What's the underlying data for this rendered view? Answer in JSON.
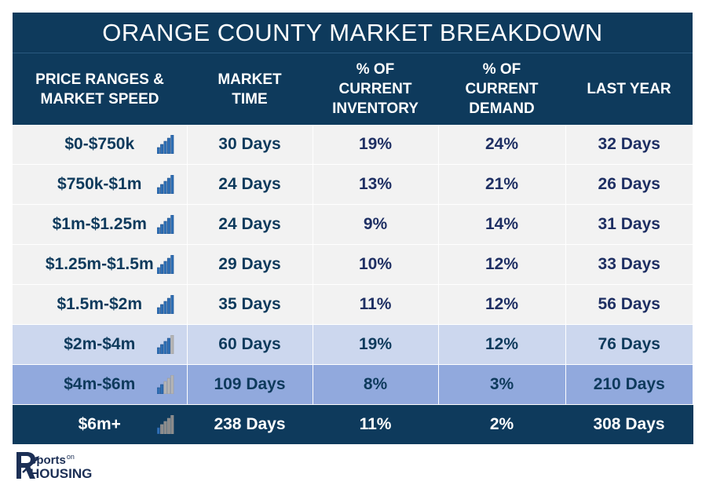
{
  "title": "ORANGE COUNTY MARKET BREAKDOWN",
  "columns": [
    "PRICE RANGES & MARKET SPEED",
    "MARKET TIME",
    "% OF CURRENT INVENTORY",
    "% OF CURRENT DEMAND",
    "LAST YEAR"
  ],
  "columns_lines": [
    [
      "PRICE RANGES &",
      "MARKET SPEED"
    ],
    [
      "MARKET",
      "TIME"
    ],
    [
      "% OF",
      "CURRENT",
      "INVENTORY"
    ],
    [
      "% OF",
      "CURRENT",
      "DEMAND"
    ],
    [
      "LAST YEAR"
    ]
  ],
  "rows": [
    {
      "range": "$0-$750k",
      "speed_bars": 5,
      "market_time": "30 Days",
      "inventory": "19%",
      "demand": "24%",
      "last_year": "32 Days",
      "style": "light"
    },
    {
      "range": "$750k-$1m",
      "speed_bars": 5,
      "market_time": "24 Days",
      "inventory": "13%",
      "demand": "21%",
      "last_year": "26 Days",
      "style": "light"
    },
    {
      "range": "$1m-$1.25m",
      "speed_bars": 5,
      "market_time": "24 Days",
      "inventory": "9%",
      "demand": "14%",
      "last_year": "31 Days",
      "style": "light"
    },
    {
      "range": "$1.25m-$1.5m",
      "speed_bars": 5,
      "market_time": "29 Days",
      "inventory": "10%",
      "demand": "12%",
      "last_year": "33 Days",
      "style": "light"
    },
    {
      "range": "$1.5m-$2m",
      "speed_bars": 5,
      "market_time": "35 Days",
      "inventory": "11%",
      "demand": "12%",
      "last_year": "56 Days",
      "style": "light"
    },
    {
      "range": "$2m-$4m",
      "speed_bars": 4,
      "market_time": "60 Days",
      "inventory": "19%",
      "demand": "12%",
      "last_year": "76 Days",
      "style": "mid"
    },
    {
      "range": "$4m-$6m",
      "speed_bars": 2,
      "market_time": "109 Days",
      "inventory": "8%",
      "demand": "3%",
      "last_year": "210 Days",
      "style": "strong"
    },
    {
      "range": "$6m+",
      "speed_bars": 1,
      "market_time": "238 Days",
      "inventory": "11%",
      "demand": "2%",
      "last_year": "308 Days",
      "style": "dark"
    }
  ],
  "colors": {
    "header_bg": "#0e3a5c",
    "bar_on": "#2f6fb5",
    "bar_off": "#b5b5b5",
    "row_light": "#f2f2f2",
    "row_mid": "#ccd7ee",
    "row_strong": "#91a9dd",
    "row_dark": "#0e3a5c"
  },
  "logo": {
    "word1": "eports",
    "word_small": "on",
    "word2": "HOUSING",
    "icon": "R-logo-icon"
  },
  "chart_data": {
    "type": "table",
    "title": "ORANGE COUNTY MARKET BREAKDOWN",
    "columns": [
      "PRICE RANGES & MARKET SPEED",
      "MARKET TIME",
      "% OF CURRENT INVENTORY",
      "% OF CURRENT DEMAND",
      "LAST YEAR"
    ],
    "rows": [
      [
        "$0-$750k",
        "30 Days",
        "19%",
        "24%",
        "32 Days"
      ],
      [
        "$750k-$1m",
        "24 Days",
        "13%",
        "21%",
        "26 Days"
      ],
      [
        "$1m-$1.25m",
        "24 Days",
        "9%",
        "14%",
        "31 Days"
      ],
      [
        "$1.25m-$1.5m",
        "29 Days",
        "10%",
        "12%",
        "33 Days"
      ],
      [
        "$1.5m-$2m",
        "35 Days",
        "11%",
        "12%",
        "56 Days"
      ],
      [
        "$2m-$4m",
        "60 Days",
        "19%",
        "12%",
        "76 Days"
      ],
      [
        "$4m-$6m",
        "109 Days",
        "8%",
        "3%",
        "210 Days"
      ],
      [
        "$6m+",
        "238 Days",
        "11%",
        "2%",
        "308 Days"
      ]
    ],
    "market_speed_bars_of_5": [
      5,
      5,
      5,
      5,
      5,
      4,
      2,
      1
    ]
  }
}
